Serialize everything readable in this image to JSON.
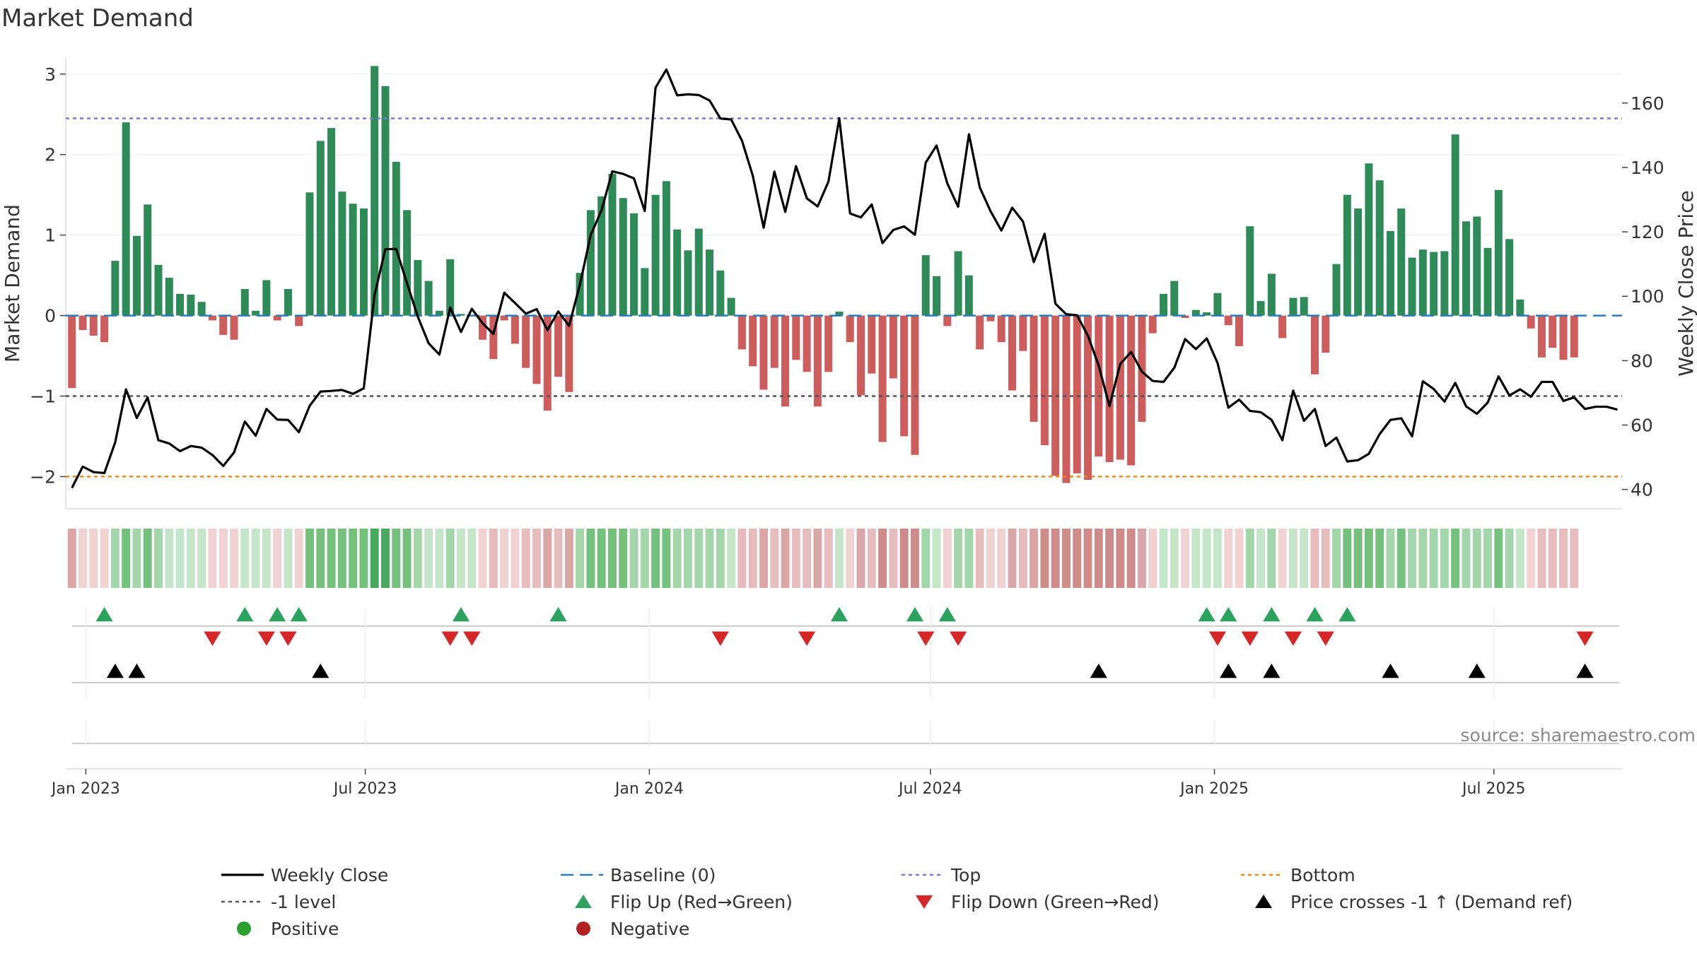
{
  "chart_data": {
    "type": "bar+line",
    "title": "Market Demand",
    "ylabel_left": "Market Demand",
    "ylabel_right": "Weekly Close Price",
    "ylim_left": [
      -2.4,
      3.2
    ],
    "ylim_right": [
      34,
      174
    ],
    "yticks_left": [
      3,
      2,
      1,
      0,
      -1,
      -2
    ],
    "ytick_labels_left": [
      "3",
      "2",
      "1",
      "0",
      "−1",
      "−2"
    ],
    "yticks_right": [
      160,
      140,
      120,
      100,
      80,
      60,
      40
    ],
    "ytick_labels_right": [
      "160",
      "140",
      "120",
      "100",
      "80",
      "60",
      "40"
    ],
    "x_start": "2022-12-19",
    "x_end": "2025-09-22",
    "x_ticks": [
      {
        "date": "2023-01-01",
        "label": "Jan 2023"
      },
      {
        "date": "2023-07-01",
        "label": "Jul 2023"
      },
      {
        "date": "2024-01-01",
        "label": "Jan 2024"
      },
      {
        "date": "2024-07-01",
        "label": "Jul 2024"
      },
      {
        "date": "2025-01-01",
        "label": "Jan 2025"
      },
      {
        "date": "2025-07-01",
        "label": "Jul 2025"
      }
    ],
    "first_week": "2022-12-23",
    "week_step_days": 7,
    "reference_lines": [
      {
        "name": "Top",
        "value": 2.45,
        "color": "#7b7bd6"
      },
      {
        "name": "Baseline (0)",
        "value": 0,
        "color": "#2b7bb9"
      },
      {
        "name": "-1 level",
        "value": -1,
        "color": "#555555"
      },
      {
        "name": "Bottom",
        "value": -2,
        "color": "#ef8a17"
      }
    ],
    "demand": [
      -0.9,
      -0.18,
      -0.25,
      -0.33,
      0.68,
      2.4,
      0.99,
      1.38,
      0.63,
      0.47,
      0.27,
      0.26,
      0.17,
      -0.06,
      -0.24,
      -0.3,
      0.33,
      0.06,
      0.44,
      -0.06,
      0.33,
      -0.13,
      1.53,
      2.17,
      2.33,
      1.54,
      1.39,
      1.33,
      3.1,
      2.85,
      1.91,
      1.31,
      0.69,
      0.43,
      0.06,
      0.7,
      0.02,
      0.01,
      -0.3,
      -0.54,
      -0.06,
      -0.35,
      -0.65,
      -0.85,
      -1.18,
      -0.76,
      -0.95,
      0.53,
      1.31,
      1.48,
      1.76,
      1.46,
      1.27,
      0.59,
      1.5,
      1.67,
      1.07,
      0.81,
      1.08,
      0.82,
      0.56,
      0.22,
      -0.42,
      -0.63,
      -0.92,
      -0.65,
      -1.13,
      -0.55,
      -0.7,
      -1.13,
      -0.7,
      0.05,
      -0.33,
      -0.99,
      -0.72,
      -1.57,
      -0.78,
      -1.5,
      -1.73,
      0.75,
      0.49,
      -0.13,
      0.8,
      0.5,
      -0.42,
      -0.07,
      -0.33,
      -0.93,
      -0.44,
      -1.32,
      -1.61,
      -1.99,
      -2.08,
      -1.96,
      -2.04,
      -1.75,
      -1.82,
      -1.79,
      -1.86,
      -1.32,
      -0.22,
      0.27,
      0.43,
      -0.03,
      0.07,
      0.04,
      0.28,
      -0.12,
      -0.38,
      1.11,
      0.18,
      0.52,
      -0.28,
      0.22,
      0.23,
      -0.73,
      -0.46,
      0.64,
      1.5,
      1.33,
      1.89,
      1.68,
      1.05,
      1.33,
      0.72,
      0.82,
      0.79,
      0.8,
      2.25,
      1.17,
      1.23,
      0.84,
      1.56,
      0.95,
      0.2,
      -0.16,
      -0.52,
      -0.4,
      -0.55,
      -0.52
    ],
    "close": [
      40.5,
      47.1,
      45.4,
      45.1,
      54.6,
      71.1,
      62.2,
      68.6,
      55.3,
      54.3,
      51.9,
      53.5,
      53,
      50.7,
      47.3,
      51.5,
      61.1,
      56.7,
      65,
      61.7,
      61.6,
      57.8,
      66,
      70.4,
      70.6,
      70.9,
      69.7,
      71.4,
      100.4,
      114.6,
      114.7,
      104.1,
      93.7,
      85.4,
      81.9,
      96.5,
      88.9,
      96.1,
      91.6,
      88.3,
      101.1,
      97.9,
      94.6,
      96,
      89.5,
      95.3,
      90.8,
      103.6,
      119,
      126.7,
      138.8,
      138,
      136.6,
      126.5,
      164.8,
      170.4,
      162.4,
      162.7,
      162.5,
      160.8,
      155.2,
      154.9,
      148.3,
      137.4,
      121.3,
      138.7,
      126.2,
      140.4,
      130.4,
      127.9,
      135.6,
      155.3,
      125.7,
      124.5,
      128.5,
      116.5,
      120.6,
      121.7,
      119.1,
      141.5,
      146.8,
      135,
      127.8,
      150.3,
      133.8,
      126.4,
      120.4,
      127.5,
      123.2,
      110.6,
      119.4,
      97.7,
      94.4,
      94.1,
      87.8,
      78.5,
      65.9,
      79,
      82.7,
      76.6,
      73.7,
      73.4,
      77.8,
      86.7,
      83.6,
      86.9,
      79.3,
      65.4,
      67.9,
      64.4,
      64,
      61.6,
      55.3,
      70.7,
      61.3,
      65,
      53.5,
      56.1,
      48.7,
      49.1,
      51.1,
      57.2,
      61.6,
      62.1,
      56.5,
      73.6,
      71.2,
      67.3,
      73.1,
      65.8,
      63.5,
      67,
      75.1,
      69.2,
      71.1,
      68.8,
      73.4,
      73.4,
      67.5,
      68.6,
      65,
      65.7,
      65.7,
      64.8
    ],
    "strip_palette": {
      "positive_strong": "#47a95c",
      "positive_mid": "#74c17e",
      "positive_weak": "#a3d6aa",
      "positive_faint": "#c6e6ca",
      "negative_faint": "#f0d2d2",
      "negative_weak": "#e7bcbc",
      "negative_mid": "#dba6a6",
      "negative_strong": "#cf8a8a"
    },
    "flip_up_dates": [
      "2023-01-13",
      "2023-04-14",
      "2023-05-05",
      "2023-05-19",
      "2023-09-01",
      "2023-11-03",
      "2024-05-03",
      "2024-06-21",
      "2024-07-12",
      "2024-12-27",
      "2025-01-10",
      "2025-02-07",
      "2025-03-07",
      "2025-03-28"
    ],
    "flip_down_dates": [
      "2023-03-24",
      "2023-04-28",
      "2023-05-12",
      "2023-08-25",
      "2023-09-08",
      "2024-02-16",
      "2024-04-12",
      "2024-06-28",
      "2024-07-19",
      "2025-01-03",
      "2025-01-24",
      "2025-02-21",
      "2025-03-14",
      "2025-08-29"
    ],
    "price_cross_dates": [
      "2023-01-20",
      "2023-02-03",
      "2023-06-02",
      "2024-10-18",
      "2025-01-10",
      "2025-02-07",
      "2025-04-25",
      "2025-06-20",
      "2025-08-29"
    ],
    "colors": {
      "positive_bar": "#2e8b57",
      "negative_bar": "#cd5c5c",
      "close_line": "#000000",
      "flip_up": "#2ca25f",
      "flip_down": "#d62728",
      "price_cross": "#000000",
      "positive_dot": "#2ca02c",
      "negative_dot": "#b22222"
    },
    "source_text": "source: sharemaestro.com",
    "legend": [
      {
        "key": "close",
        "label": "Weekly Close"
      },
      {
        "key": "baseline",
        "label": "Baseline (0)"
      },
      {
        "key": "top",
        "label": "Top"
      },
      {
        "key": "bottom",
        "label": "Bottom"
      },
      {
        "key": "minus1",
        "label": "-1 level"
      },
      {
        "key": "flipup",
        "label": "Flip Up (Red→Green)"
      },
      {
        "key": "flipdown",
        "label": "Flip Down (Green→Red)"
      },
      {
        "key": "cross",
        "label": "Price crosses -1 ↑ (Demand ref)"
      },
      {
        "key": "positive",
        "label": "Positive"
      },
      {
        "key": "negative",
        "label": "Negative"
      }
    ]
  }
}
